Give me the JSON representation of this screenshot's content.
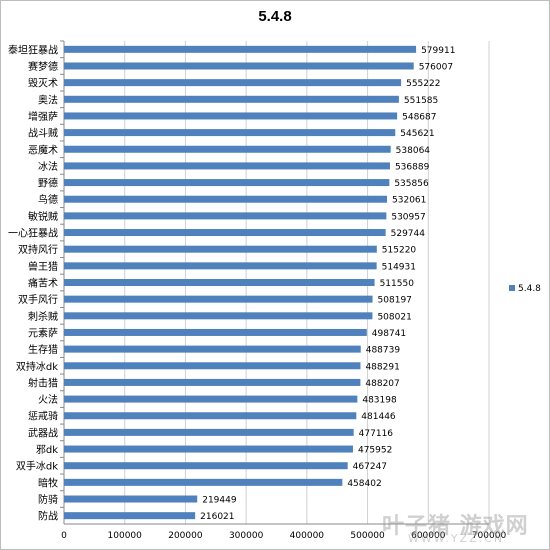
{
  "chart_data": {
    "type": "bar",
    "orientation": "horizontal",
    "title": "5.4.8",
    "categories": [
      "泰坦狂暴战",
      "赛梦德",
      "毁灭术",
      "奥法",
      "增强萨",
      "战斗贼",
      "恶魔术",
      "冰法",
      "野德",
      "鸟德",
      "敏锐贼",
      "一心狂暴战",
      "双持风行",
      "兽王猎",
      "痛苦术",
      "双手风行",
      "刺杀贼",
      "元素萨",
      "生存猎",
      "双持冰dk",
      "射击猎",
      "火法",
      "惩戒骑",
      "武器战",
      "邪dk",
      "双手冰dk",
      "暗牧",
      "防骑",
      "防战"
    ],
    "series": [
      {
        "name": "5.4.8",
        "color": "#4f81bd",
        "values": [
          579911,
          576007,
          555222,
          551585,
          548687,
          545621,
          538064,
          536889,
          535856,
          532061,
          530957,
          529744,
          515220,
          514931,
          511550,
          508197,
          508021,
          498741,
          488739,
          488291,
          488207,
          483198,
          481446,
          477116,
          475952,
          467247,
          458402,
          219449,
          216021
        ]
      }
    ],
    "xlim": [
      0,
      700000
    ],
    "xticks": [
      0,
      100000,
      200000,
      300000,
      400000,
      500000,
      600000,
      700000
    ],
    "grid": true,
    "legend_position": "right",
    "data_labels": true
  },
  "watermark": {
    "main": "叶子猪 游戏网",
    "url": "WWW.YZZ.CN"
  }
}
